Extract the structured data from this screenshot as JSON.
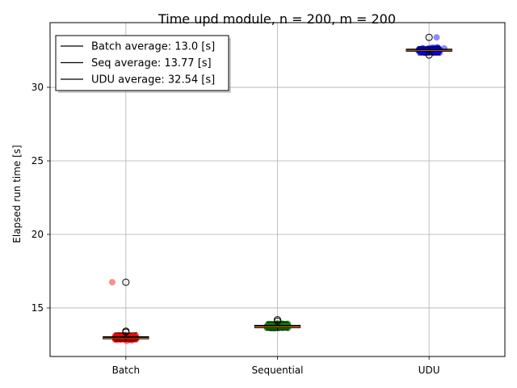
{
  "chart_data": {
    "type": "scatter",
    "title": "Time upd module, n = 200, m = 200",
    "xlabel": "",
    "ylabel": "Elapsed run time [s]",
    "categories": [
      "Batch",
      "Sequential",
      "UDU"
    ],
    "ylim": [
      11.7,
      34.4
    ],
    "yticks": [
      15,
      20,
      25,
      30
    ],
    "grid": true,
    "legend_placement": "top-left",
    "legend": [
      {
        "label": "Batch average: 13.0 [s]"
      },
      {
        "label": "Seq average: 13.77 [s]"
      },
      {
        "label": "UDU average: 32.54 [s]"
      }
    ],
    "series": [
      {
        "category": "Batch",
        "color": "#ff0000",
        "average": 13.0,
        "median": 12.97,
        "q1": 12.9,
        "q3": 13.05,
        "whisker_low": 12.75,
        "whisker_high": 13.3,
        "outliers": [
          13.35,
          13.42,
          16.75
        ],
        "highlight_points": [
          {
            "x_offset": -0.09,
            "y": 16.75
          }
        ],
        "spread": 0.14,
        "n_points": 200,
        "mean": 12.98,
        "sd": 0.13
      },
      {
        "category": "Sequential",
        "color": "#008000",
        "average": 13.77,
        "median": 13.72,
        "q1": 13.65,
        "q3": 13.82,
        "whisker_low": 13.5,
        "whisker_high": 14.05,
        "outliers": [
          14.1,
          14.2
        ],
        "highlight_points": [],
        "spread": 0.14,
        "n_points": 200,
        "mean": 13.77,
        "sd": 0.14
      },
      {
        "category": "UDU",
        "color": "#0000ff",
        "average": 32.54,
        "median": 32.5,
        "q1": 32.45,
        "q3": 32.6,
        "whisker_low": 32.2,
        "whisker_high": 32.75,
        "outliers": [
          33.4,
          32.2
        ],
        "highlight_points": [
          {
            "x_offset": 0.05,
            "y": 33.4
          },
          {
            "x_offset": 0.1,
            "y": 32.65
          }
        ],
        "spread": 0.14,
        "n_points": 200,
        "mean": 32.52,
        "sd": 0.12
      }
    ]
  }
}
